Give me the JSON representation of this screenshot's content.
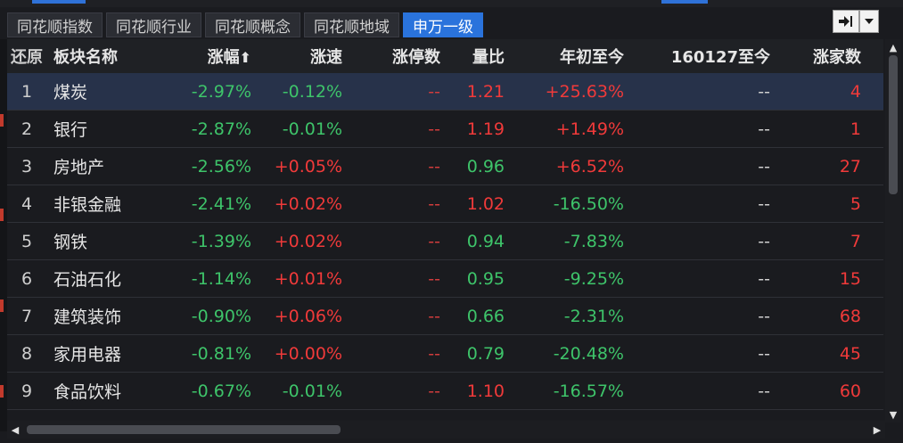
{
  "tabs": [
    {
      "label": "同花顺指数",
      "active": false
    },
    {
      "label": "同花顺行业",
      "active": false
    },
    {
      "label": "同花顺概念",
      "active": false
    },
    {
      "label": "同花顺地域",
      "active": false
    },
    {
      "label": "申万一级",
      "active": true
    }
  ],
  "toolbar": {
    "pin_icon": "pin-right-icon",
    "menu_icon": "dropdown-arrow-icon"
  },
  "columns": {
    "restore": "还原",
    "name": "板块名称",
    "change": "涨幅",
    "sort_arrow": "⬆",
    "speed": "涨速",
    "limit_up": "涨停数",
    "volume_ratio": "量比",
    "ytd": "年初至今",
    "since": "160127至今",
    "rising_count": "涨家数"
  },
  "rows": [
    {
      "idx": "1",
      "name": "煤炭",
      "change": "-2.97%",
      "speed": "-0.12%",
      "limit_up": "--",
      "volume_ratio": "1.21",
      "ytd": "+25.63%",
      "since": "--",
      "rising_count": "4"
    },
    {
      "idx": "2",
      "name": "银行",
      "change": "-2.87%",
      "speed": "-0.01%",
      "limit_up": "--",
      "volume_ratio": "1.19",
      "ytd": "+1.49%",
      "since": "--",
      "rising_count": "1"
    },
    {
      "idx": "3",
      "name": "房地产",
      "change": "-2.56%",
      "speed": "+0.05%",
      "limit_up": "--",
      "volume_ratio": "0.96",
      "ytd": "+6.52%",
      "since": "--",
      "rising_count": "27"
    },
    {
      "idx": "4",
      "name": "非银金融",
      "change": "-2.41%",
      "speed": "+0.02%",
      "limit_up": "--",
      "volume_ratio": "1.02",
      "ytd": "-16.50%",
      "since": "--",
      "rising_count": "5"
    },
    {
      "idx": "5",
      "name": "钢铁",
      "change": "-1.39%",
      "speed": "+0.02%",
      "limit_up": "--",
      "volume_ratio": "0.94",
      "ytd": "-7.83%",
      "since": "--",
      "rising_count": "7"
    },
    {
      "idx": "6",
      "name": "石油石化",
      "change": "-1.14%",
      "speed": "+0.01%",
      "limit_up": "--",
      "volume_ratio": "0.95",
      "ytd": "-9.25%",
      "since": "--",
      "rising_count": "15"
    },
    {
      "idx": "7",
      "name": "建筑装饰",
      "change": "-0.90%",
      "speed": "+0.06%",
      "limit_up": "--",
      "volume_ratio": "0.66",
      "ytd": "-2.31%",
      "since": "--",
      "rising_count": "68"
    },
    {
      "idx": "8",
      "name": "家用电器",
      "change": "-0.81%",
      "speed": "+0.00%",
      "limit_up": "--",
      "volume_ratio": "0.79",
      "ytd": "-20.48%",
      "since": "--",
      "rising_count": "45"
    },
    {
      "idx": "9",
      "name": "食品饮料",
      "change": "-0.67%",
      "speed": "-0.01%",
      "limit_up": "--",
      "volume_ratio": "1.10",
      "ytd": "-16.57%",
      "since": "--",
      "rising_count": "60"
    }
  ],
  "colors": {
    "up": "#f03a3a",
    "down": "#3ec46a",
    "active_tab": "#2a73dc",
    "selected_row": "#27324a"
  }
}
